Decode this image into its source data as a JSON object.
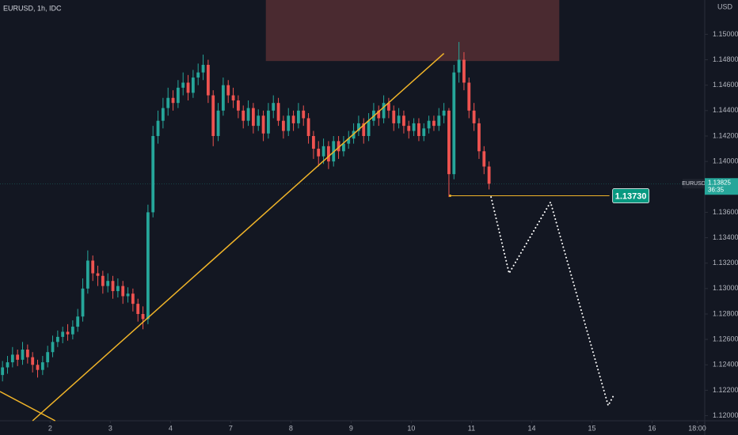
{
  "chart_data": {
    "type": "candlestick",
    "title": "EURUSD, 1h, IDC",
    "currency": "USD",
    "symbol": "EURUSD",
    "countdown": "36:35",
    "up_color": "#26a69a",
    "down_color": "#ef5350",
    "x": [
      1,
      3,
      5,
      7,
      9,
      11,
      13,
      15,
      17,
      19,
      21,
      23,
      25,
      27,
      29,
      31,
      33,
      35,
      37,
      39,
      41,
      43,
      45,
      47,
      49,
      51,
      53,
      55,
      57,
      59,
      61,
      63,
      65,
      67,
      69,
      71,
      73,
      75,
      77,
      79,
      81,
      83,
      85,
      87,
      89,
      91,
      93,
      95,
      97,
      99,
      101,
      103,
      105,
      107,
      109,
      111,
      113,
      115,
      117,
      119,
      121,
      123,
      125,
      127,
      129,
      131,
      133,
      135,
      137,
      139,
      141,
      143,
      145,
      147,
      149,
      151,
      153,
      155,
      157,
      159,
      161,
      163,
      165,
      167,
      169,
      171,
      173,
      175,
      177,
      179,
      181,
      183,
      185,
      187,
      189,
      191,
      193,
      195
    ],
    "open": [
      1.1232,
      1.1238,
      1.1242,
      1.1248,
      1.1244,
      1.1252,
      1.1246,
      1.124,
      1.1236,
      1.1242,
      1.125,
      1.1258,
      1.1262,
      1.1266,
      1.1264,
      1.127,
      1.1278,
      1.13,
      1.1322,
      1.1312,
      1.131,
      1.1302,
      1.1306,
      1.1298,
      1.1302,
      1.1294,
      1.1296,
      1.1288,
      1.128,
      1.1276,
      1.136,
      1.142,
      1.1432,
      1.1442,
      1.145,
      1.1446,
      1.1458,
      1.1462,
      1.1454,
      1.1466,
      1.147,
      1.1476,
      1.1452,
      1.142,
      1.144,
      1.146,
      1.1452,
      1.1448,
      1.144,
      1.1432,
      1.1442,
      1.1428,
      1.1436,
      1.1422,
      1.144,
      1.1446,
      1.1432,
      1.1424,
      1.1436,
      1.143,
      1.144,
      1.1434,
      1.142,
      1.141,
      1.1404,
      1.1412,
      1.14,
      1.1416,
      1.1408,
      1.1414,
      1.1418,
      1.1424,
      1.143,
      1.142,
      1.1432,
      1.144,
      1.1434,
      1.1446,
      1.144,
      1.143,
      1.1436,
      1.1428,
      1.1424,
      1.143,
      1.142,
      1.1426,
      1.1432,
      1.1428,
      1.1436,
      1.144,
      1.139,
      1.147,
      1.148,
      1.1462,
      1.144,
      1.143,
      1.1408,
      1.1396
    ],
    "high": [
      1.1243,
      1.1247,
      1.1254,
      1.1252,
      1.1258,
      1.1256,
      1.125,
      1.1244,
      1.1247,
      1.1255,
      1.1263,
      1.1267,
      1.127,
      1.1272,
      1.1275,
      1.1284,
      1.1308,
      1.133,
      1.1326,
      1.1318,
      1.1314,
      1.1312,
      1.131,
      1.1308,
      1.1306,
      1.1301,
      1.13,
      1.1292,
      1.1286,
      1.1366,
      1.1428,
      1.144,
      1.145,
      1.1458,
      1.1456,
      1.1464,
      1.147,
      1.1468,
      1.1472,
      1.1477,
      1.1484,
      1.148,
      1.1456,
      1.1446,
      1.1466,
      1.1464,
      1.1458,
      1.1452,
      1.1444,
      1.1448,
      1.1446,
      1.1441,
      1.144,
      1.1446,
      1.1452,
      1.145,
      1.1436,
      1.1442,
      1.144,
      1.1446,
      1.1444,
      1.1438,
      1.1424,
      1.1416,
      1.1418,
      1.1416,
      1.142,
      1.142,
      1.142,
      1.1424,
      1.143,
      1.1436,
      1.1434,
      1.1438,
      1.1446,
      1.1444,
      1.1452,
      1.145,
      1.1444,
      1.1442,
      1.144,
      1.1432,
      1.1434,
      1.1434,
      1.143,
      1.1436,
      1.1436,
      1.1442,
      1.1446,
      1.1442,
      1.1476,
      1.1494,
      1.1486,
      1.1466,
      1.1446,
      1.1434,
      1.1412,
      1.14
    ],
    "low": [
      1.1227,
      1.1233,
      1.1238,
      1.1239,
      1.124,
      1.1241,
      1.1234,
      1.123,
      1.1232,
      1.1238,
      1.1246,
      1.1254,
      1.1257,
      1.1259,
      1.126,
      1.1266,
      1.1274,
      1.1296,
      1.1306,
      1.1302,
      1.1296,
      1.1297,
      1.1292,
      1.1293,
      1.1288,
      1.1289,
      1.1282,
      1.1274,
      1.1268,
      1.1272,
      1.1356,
      1.1414,
      1.1426,
      1.1436,
      1.144,
      1.1442,
      1.1452,
      1.1448,
      1.145,
      1.146,
      1.1464,
      1.1446,
      1.1412,
      1.1416,
      1.1436,
      1.1446,
      1.1442,
      1.1434,
      1.1426,
      1.1428,
      1.1422,
      1.1424,
      1.1416,
      1.1418,
      1.1434,
      1.1428,
      1.1418,
      1.142,
      1.1424,
      1.1426,
      1.1428,
      1.1414,
      1.1402,
      1.1396,
      1.1398,
      1.1394,
      1.1396,
      1.1402,
      1.1404,
      1.141,
      1.1414,
      1.142,
      1.1414,
      1.1416,
      1.1428,
      1.1428,
      1.143,
      1.1434,
      1.1424,
      1.1426,
      1.1422,
      1.1418,
      1.142,
      1.1416,
      1.1416,
      1.1422,
      1.1424,
      1.1424,
      1.143,
      1.1372,
      1.1386,
      1.1462,
      1.1456,
      1.1434,
      1.1424,
      1.1402,
      1.139,
      1.1378
    ],
    "close": [
      1.1238,
      1.1242,
      1.1248,
      1.1244,
      1.1252,
      1.1246,
      1.124,
      1.1236,
      1.1242,
      1.125,
      1.1258,
      1.1262,
      1.1266,
      1.1264,
      1.127,
      1.1278,
      1.13,
      1.1322,
      1.1312,
      1.131,
      1.1302,
      1.1306,
      1.1298,
      1.1302,
      1.1294,
      1.1296,
      1.1288,
      1.128,
      1.1276,
      1.136,
      1.142,
      1.1432,
      1.1442,
      1.145,
      1.1446,
      1.1458,
      1.1462,
      1.1454,
      1.1466,
      1.147,
      1.1476,
      1.1452,
      1.142,
      1.144,
      1.146,
      1.1452,
      1.1448,
      1.144,
      1.1432,
      1.1442,
      1.1428,
      1.1436,
      1.1422,
      1.144,
      1.1446,
      1.1432,
      1.1424,
      1.1436,
      1.143,
      1.144,
      1.1434,
      1.142,
      1.141,
      1.1404,
      1.1412,
      1.14,
      1.1416,
      1.1408,
      1.1414,
      1.1418,
      1.1424,
      1.143,
      1.142,
      1.1432,
      1.144,
      1.1434,
      1.1446,
      1.144,
      1.143,
      1.1436,
      1.1428,
      1.1424,
      1.143,
      1.142,
      1.1426,
      1.1432,
      1.1428,
      1.1436,
      1.144,
      1.139,
      1.147,
      1.148,
      1.1462,
      1.144,
      1.143,
      1.1408,
      1.1396,
      1.13825
    ],
    "xlim": [
      0,
      281
    ],
    "xticks": [
      {
        "value": 20,
        "label": "2"
      },
      {
        "value": 44,
        "label": "3"
      },
      {
        "value": 68,
        "label": "4"
      },
      {
        "value": 92,
        "label": "7"
      },
      {
        "value": 116,
        "label": "8"
      },
      {
        "value": 140,
        "label": "9"
      },
      {
        "value": 164,
        "label": "10"
      },
      {
        "value": 188,
        "label": "11"
      },
      {
        "value": 212,
        "label": "14"
      },
      {
        "value": 236,
        "label": "15"
      },
      {
        "value": 260,
        "label": "16"
      },
      {
        "value": 278,
        "label": "18:00"
      }
    ],
    "ylim": [
      1.1196,
      1.1527
    ],
    "yticks": [
      {
        "value": 1.12,
        "label": "1.12000"
      },
      {
        "value": 1.122,
        "label": "1.12200"
      },
      {
        "value": 1.124,
        "label": "1.12400"
      },
      {
        "value": 1.126,
        "label": "1.12600"
      },
      {
        "value": 1.128,
        "label": "1.12800"
      },
      {
        "value": 1.13,
        "label": "1.13000"
      },
      {
        "value": 1.132,
        "label": "1.13200"
      },
      {
        "value": 1.134,
        "label": "1.13400"
      },
      {
        "value": 1.136,
        "label": "1.13600"
      },
      {
        "value": 1.138,
        "label": "1.13800"
      },
      {
        "value": 1.14,
        "label": "1.14000"
      },
      {
        "value": 1.142,
        "label": "1.14200"
      },
      {
        "value": 1.144,
        "label": "1.14400"
      },
      {
        "value": 1.146,
        "label": "1.14600"
      },
      {
        "value": 1.148,
        "label": "1.14800"
      },
      {
        "value": 1.15,
        "label": "1.15000"
      }
    ],
    "annotations": {
      "zone": {
        "x": [
          106,
          223
        ],
        "y": [
          1.1479,
          1.1527
        ],
        "color": "#4a2a30"
      },
      "trendlines": [
        {
          "x": [
            13,
            177
          ],
          "y": [
            1.1196,
            1.1485
          ],
          "color": "#f0b429"
        },
        {
          "x": [
            0,
            22
          ],
          "y": [
            1.1219,
            1.1196
          ],
          "color": "#f0b429"
        }
      ],
      "level": {
        "x": [
          179.5,
          243
        ],
        "value": 1.1373,
        "label": "1.13730",
        "color": "#f0b429",
        "tag_color": "#089981"
      },
      "projection": {
        "x": [
          195.8,
          203,
          219.5,
          242.5,
          244.7
        ],
        "y": [
          1.1372,
          1.1312,
          1.1368,
          1.1208,
          1.1216
        ],
        "color": "#ffffff"
      }
    }
  }
}
